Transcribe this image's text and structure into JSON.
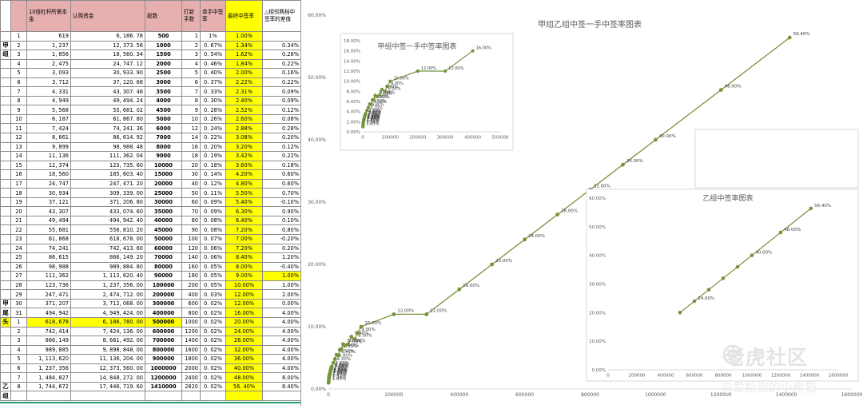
{
  "sheet": {
    "headers": [
      "",
      "",
      "10倍杠杆所需本金",
      "认购资金",
      "股数",
      "打新手数",
      "单手中签率",
      "最终中签率",
      "△相邻两档中签率的差值"
    ],
    "group_labels": {
      "jia": "甲\n组",
      "jia_tail": "甲\n尾",
      "tou": "头",
      "yi": "乙\n组"
    },
    "rows": [
      {
        "g": "",
        "no": "1",
        "cap": "619",
        "fund": "6, 186. 78",
        "shares": "500",
        "lots": "1",
        "rate": "1%",
        "final": "1.00%",
        "diff": ""
      },
      {
        "g": "甲",
        "no": "2",
        "cap": "1, 237",
        "fund": "12, 373. 56",
        "shares": "1000",
        "lots": "2",
        "rate": "0. 67%",
        "final": "1.34%",
        "diff": "0.34%"
      },
      {
        "g": "组",
        "no": "3",
        "cap": "1, 856",
        "fund": "18, 560. 34",
        "shares": "1500",
        "lots": "3",
        "rate": "0. 54%",
        "final": "1.62%",
        "diff": "0.28%"
      },
      {
        "g": "",
        "no": "4",
        "cap": "2, 475",
        "fund": "24, 747. 12",
        "shares": "2000",
        "lots": "4",
        "rate": "0. 46%",
        "final": "1.84%",
        "diff": "0.22%"
      },
      {
        "g": "",
        "no": "5",
        "cap": "3, 093",
        "fund": "30, 933. 90",
        "shares": "2500",
        "lots": "5",
        "rate": "0. 40%",
        "final": "2.00%",
        "diff": "0.16%"
      },
      {
        "g": "",
        "no": "6",
        "cap": "3, 712",
        "fund": "37, 120. 68",
        "shares": "3000",
        "lots": "6",
        "rate": "0. 37%",
        "final": "2.22%",
        "diff": "0.22%"
      },
      {
        "g": "",
        "no": "7",
        "cap": "4, 331",
        "fund": "43, 307. 46",
        "shares": "3500",
        "lots": "7",
        "rate": "0. 33%",
        "final": "2.31%",
        "diff": "0.09%"
      },
      {
        "g": "",
        "no": "8",
        "cap": "4, 949",
        "fund": "49, 494. 24",
        "shares": "4000",
        "lots": "8",
        "rate": "0. 30%",
        "final": "2.40%",
        "diff": "0.09%"
      },
      {
        "g": "",
        "no": "9",
        "cap": "5, 568",
        "fund": "55, 681. 02",
        "shares": "4500",
        "lots": "9",
        "rate": "0. 28%",
        "final": "2.52%",
        "diff": "0.12%"
      },
      {
        "g": "",
        "no": "10",
        "cap": "6, 187",
        "fund": "61, 867. 80",
        "shares": "5000",
        "lots": "10",
        "rate": "0. 26%",
        "final": "2.60%",
        "diff": "0.08%"
      },
      {
        "g": "",
        "no": "11",
        "cap": "7, 424",
        "fund": "74, 241. 36",
        "shares": "6000",
        "lots": "12",
        "rate": "0. 24%",
        "final": "2.88%",
        "diff": "0.28%"
      },
      {
        "g": "",
        "no": "12",
        "cap": "8, 661",
        "fund": "86, 614. 92",
        "shares": "7000",
        "lots": "14",
        "rate": "0. 22%",
        "final": "3.08%",
        "diff": "0.20%"
      },
      {
        "g": "",
        "no": "13",
        "cap": "9, 899",
        "fund": "98, 988. 48",
        "shares": "8000",
        "lots": "16",
        "rate": "0. 20%",
        "final": "3.20%",
        "diff": "0.12%"
      },
      {
        "g": "",
        "no": "14",
        "cap": "11, 136",
        "fund": "111, 362. 04",
        "shares": "9000",
        "lots": "18",
        "rate": "0. 19%",
        "final": "3.42%",
        "diff": "0.22%"
      },
      {
        "g": "",
        "no": "15",
        "cap": "12, 374",
        "fund": "123, 735. 60",
        "shares": "10000",
        "lots": "20",
        "rate": "0. 18%",
        "final": "3.60%",
        "diff": "0.18%"
      },
      {
        "g": "",
        "no": "16",
        "cap": "18, 560",
        "fund": "185, 603. 40",
        "shares": "15000",
        "lots": "30",
        "rate": "0. 14%",
        "final": "4.20%",
        "diff": "0.60%"
      },
      {
        "g": "",
        "no": "17",
        "cap": "24, 747",
        "fund": "247, 471. 20",
        "shares": "20000",
        "lots": "40",
        "rate": "0. 12%",
        "final": "4.80%",
        "diff": "0.60%"
      },
      {
        "g": "",
        "no": "18",
        "cap": "30, 934",
        "fund": "309, 339. 00",
        "shares": "25000",
        "lots": "50",
        "rate": "0. 11%",
        "final": "5.50%",
        "diff": "0.70%"
      },
      {
        "g": "",
        "no": "19",
        "cap": "37, 121",
        "fund": "371, 206. 80",
        "shares": "30000",
        "lots": "60",
        "rate": "0. 09%",
        "final": "5.40%",
        "diff": "-0.10%"
      },
      {
        "g": "",
        "no": "20",
        "cap": "43, 307",
        "fund": "433, 074. 60",
        "shares": "35000",
        "lots": "70",
        "rate": "0. 09%",
        "final": "6.30%",
        "diff": "0.90%"
      },
      {
        "g": "",
        "no": "21",
        "cap": "49, 494",
        "fund": "494, 942. 40",
        "shares": "40000",
        "lots": "80",
        "rate": "0. 08%",
        "final": "6.40%",
        "diff": "0.10%"
      },
      {
        "g": "",
        "no": "22",
        "cap": "55, 681",
        "fund": "556, 810. 20",
        "shares": "45000",
        "lots": "90",
        "rate": "0. 08%",
        "final": "7.20%",
        "diff": "0.80%"
      },
      {
        "g": "",
        "no": "23",
        "cap": "61, 868",
        "fund": "618, 678. 00",
        "shares": "50000",
        "lots": "100",
        "rate": "0. 07%",
        "final": "7.00%",
        "diff": "-0.20%"
      },
      {
        "g": "",
        "no": "24",
        "cap": "74, 241",
        "fund": "742, 413. 60",
        "shares": "60000",
        "lots": "120",
        "rate": "0. 06%",
        "final": "7.20%",
        "diff": "0.20%"
      },
      {
        "g": "",
        "no": "25",
        "cap": "86, 615",
        "fund": "866, 149. 20",
        "shares": "70000",
        "lots": "140",
        "rate": "0. 06%",
        "final": "8.40%",
        "diff": "1.20%"
      },
      {
        "g": "",
        "no": "26",
        "cap": "98, 988",
        "fund": "989, 884. 80",
        "shares": "80000",
        "lots": "160",
        "rate": "0. 05%",
        "final": "8.00%",
        "diff": "-0.40%"
      },
      {
        "g": "",
        "no": "27",
        "cap": "111, 362",
        "fund": "1, 113, 620. 40",
        "shares": "90000",
        "lots": "180",
        "rate": "0. 05%",
        "final": "9.00%",
        "diff": "1.00%",
        "diffhl": true
      },
      {
        "g": "",
        "no": "28",
        "cap": "123, 736",
        "fund": "1, 237, 356. 00",
        "shares": "100000",
        "lots": "200",
        "rate": "0. 05%",
        "final": "10.00%",
        "diff": "1.00%"
      },
      {
        "g": "",
        "no": "29",
        "cap": "247, 471",
        "fund": "2, 474, 712. 00",
        "shares": "200000",
        "lots": "400",
        "rate": "0. 03%",
        "final": "12.00%",
        "diff": "2.00%"
      },
      {
        "g": "甲",
        "no": "30",
        "cap": "371, 207",
        "fund": "3, 712, 068. 00",
        "shares": "300000",
        "lots": "600",
        "rate": "0. 02%",
        "final": "12.00%",
        "diff": "0.00%"
      },
      {
        "g": "尾",
        "no": "31",
        "cap": "494, 942",
        "fund": "4, 949, 424. 00",
        "shares": "400000",
        "lots": "800",
        "rate": "0. 02%",
        "final": "16.00%",
        "diff": "4.00%"
      },
      {
        "g": "头",
        "no": "1",
        "cap": "618, 678",
        "fund": "6, 186, 780. 00",
        "shares": "500000",
        "lots": "1000",
        "rate": "0. 02%",
        "final": "20.00%",
        "diff": "4.00%",
        "rowhl": true
      },
      {
        "g": "",
        "no": "2",
        "cap": "742, 414",
        "fund": "7, 424, 136. 00",
        "shares": "600000",
        "lots": "1200",
        "rate": "0. 02%",
        "final": "24.00%",
        "diff": "4.00%"
      },
      {
        "g": "",
        "no": "3",
        "cap": "866, 149",
        "fund": "8, 661, 492. 00",
        "shares": "700000",
        "lots": "1400",
        "rate": "0. 02%",
        "final": "28.00%",
        "diff": "4.00%"
      },
      {
        "g": "",
        "no": "4",
        "cap": "989, 885",
        "fund": "9, 898, 848. 00",
        "shares": "800000",
        "lots": "1600",
        "rate": "0. 02%",
        "final": "32.00%",
        "diff": "4.00%"
      },
      {
        "g": "",
        "no": "5",
        "cap": "1, 113, 620",
        "fund": "11, 136, 204. 00",
        "shares": "900000",
        "lots": "1800",
        "rate": "0. 02%",
        "final": "36.00%",
        "diff": "4.00%"
      },
      {
        "g": "",
        "no": "6",
        "cap": "1, 237, 356",
        "fund": "12, 373, 560. 00",
        "shares": "1000000",
        "lots": "2000",
        "rate": "0. 02%",
        "final": "40.00%",
        "diff": "4.00%"
      },
      {
        "g": "",
        "no": "7",
        "cap": "1, 484, 827",
        "fund": "14, 848, 272. 00",
        "shares": "1200000",
        "lots": "2400",
        "rate": "0. 02%",
        "final": "48.00%",
        "diff": "8.00%"
      },
      {
        "g": "乙",
        "no": "8",
        "cap": "1, 744, 672",
        "fund": "17, 446, 719. 60",
        "shares": "1410000",
        "lots": "2820",
        "rate": "0. 02%",
        "final": "56. 40%",
        "diff": "8.40%"
      },
      {
        "g": "组",
        "no": "",
        "cap": "",
        "fund": "",
        "shares": "",
        "lots": "",
        "rate": "",
        "final": "",
        "diff": ""
      }
    ]
  },
  "chart_data": [
    {
      "type": "line",
      "title": "甲组乙组中签一手中签率图表",
      "xlim": [
        0,
        1600000
      ],
      "ylim": [
        0,
        60
      ],
      "x_ticks": [
        "0",
        "200000",
        "400000",
        "600000",
        "800000",
        "1000000",
        "1200000",
        "1400000",
        "1600000"
      ],
      "y_ticks": [
        "0.00%",
        "10.00%",
        "20.00%",
        "30.00%",
        "40.00%",
        "50.00%",
        "60.00%"
      ],
      "x": [
        500,
        1000,
        1500,
        2000,
        2500,
        3000,
        3500,
        4000,
        4500,
        5000,
        6000,
        7000,
        8000,
        9000,
        10000,
        15000,
        20000,
        25000,
        30000,
        35000,
        40000,
        45000,
        50000,
        60000,
        70000,
        80000,
        90000,
        100000,
        200000,
        300000,
        400000,
        500000,
        600000,
        700000,
        800000,
        900000,
        1000000,
        1200000,
        1410000
      ],
      "y": [
        1.0,
        1.34,
        1.62,
        1.84,
        2.0,
        2.22,
        2.31,
        2.4,
        2.52,
        2.6,
        2.88,
        3.08,
        3.2,
        3.42,
        3.6,
        4.2,
        4.8,
        5.5,
        5.4,
        6.3,
        6.4,
        7.2,
        7.0,
        7.2,
        8.4,
        8.0,
        9.0,
        10.0,
        12.0,
        12.0,
        16.0,
        20.0,
        24.0,
        28.0,
        32.0,
        36.0,
        40.0,
        48.0,
        56.4
      ],
      "point_labels": [
        "1.00%",
        "1.34%",
        "1.62%",
        "1.84%",
        "2.00%",
        "2.22%",
        "2.31%",
        "2.40%",
        "2.52%",
        "2.60%",
        "2.88%",
        "3.08%",
        "3.20%",
        "3.42%",
        "3.60%",
        "4.20%",
        "4.80%",
        "5.50%",
        "5.40%",
        "6.30%",
        "6.40%",
        "7.20%",
        "7.00%",
        "7.20%",
        "8.40%",
        "8.00%",
        "9.00%",
        "10.00%",
        "12.00%",
        "12.00%",
        "16.00%",
        "20.00%",
        "24.00%",
        "28.00%",
        "32.00%",
        "36.00%",
        "40.00%",
        "48.00%",
        "56.40%"
      ],
      "color": "#76933c"
    },
    {
      "type": "line",
      "title": "甲组中签一手中签率图表",
      "xlim": [
        0,
        500000
      ],
      "ylim": [
        0,
        18
      ],
      "x_ticks": [
        "0",
        "100000",
        "200000",
        "300000",
        "400000",
        "500000"
      ],
      "y_ticks": [
        "0.00%",
        "2.00%",
        "4.00%",
        "6.00%",
        "8.00%",
        "10.00%",
        "12.00%",
        "14.00%",
        "16.00%",
        "18.00%"
      ],
      "x": [
        500,
        1000,
        1500,
        2000,
        2500,
        3000,
        3500,
        4000,
        4500,
        5000,
        6000,
        7000,
        8000,
        9000,
        10000,
        15000,
        20000,
        25000,
        30000,
        35000,
        40000,
        45000,
        50000,
        60000,
        70000,
        80000,
        90000,
        100000,
        200000,
        300000,
        400000
      ],
      "y": [
        1.0,
        1.34,
        1.62,
        1.84,
        2.0,
        2.22,
        2.31,
        2.4,
        2.52,
        2.6,
        2.88,
        3.08,
        3.2,
        3.42,
        3.6,
        4.2,
        4.8,
        5.5,
        5.4,
        6.3,
        6.4,
        7.2,
        7.0,
        7.2,
        8.4,
        8.0,
        9.0,
        10.0,
        12.0,
        12.0,
        16.0
      ],
      "point_labels": [
        "1.00%",
        "1.34%",
        "1.62%",
        "1.84%",
        "2.00%",
        "2.22%",
        "2.31%",
        "2.40%",
        "2.52%",
        "2.60%",
        "2.88%",
        "3.08%",
        "3.20%",
        "3.42%",
        "3.60%",
        "4.20%",
        "4.80%",
        "5.50%",
        "5.40%",
        "6.30%",
        "6.40%",
        "7.20%",
        "7.00%",
        "7.20%",
        "8.40%",
        "8.00%",
        "9.00%",
        "10.00%",
        "12.00%",
        "12.00%",
        "16.00%"
      ],
      "color": "#76933c"
    },
    {
      "type": "line",
      "title": "乙组中签率图表",
      "xlim": [
        0,
        1600000
      ],
      "ylim": [
        0,
        60
      ],
      "x_ticks": [
        "0",
        "200000",
        "400000",
        "600000",
        "800000",
        "1000000",
        "1200000",
        "1400000",
        "1600000"
      ],
      "y_ticks": [
        "0.00%",
        "10.00%",
        "20.00%",
        "30.00%",
        "40.00%",
        "50.00%",
        "60.00%"
      ],
      "x": [
        500000,
        600000,
        700000,
        800000,
        900000,
        1000000,
        1200000,
        1410000
      ],
      "y": [
        20.0,
        24.0,
        28.0,
        32.0,
        36.0,
        40.0,
        48.0,
        56.4
      ],
      "point_labels": [
        "",
        "24.00%",
        "",
        "",
        "",
        "40.00%",
        "48.00%",
        "56.40%"
      ],
      "color": "#76933c"
    }
  ],
  "watermark": {
    "brand": "老虎社区",
    "author": "@爱投资的小熊猫"
  }
}
